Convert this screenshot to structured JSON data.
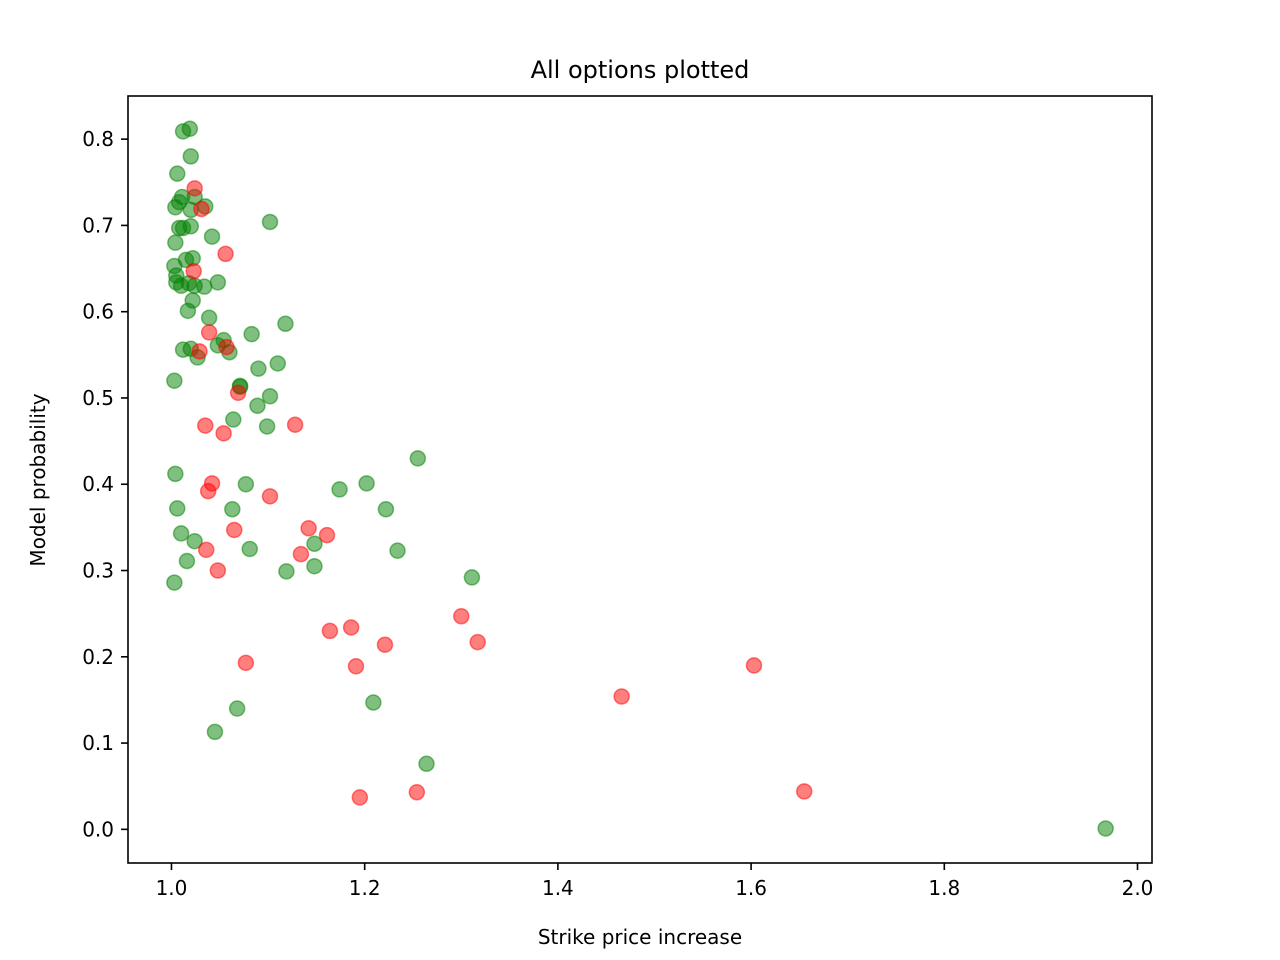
{
  "chart_data": {
    "type": "scatter",
    "title": "All options plotted",
    "xlabel": "Strike price increase",
    "ylabel": "Model probability",
    "xlim": [
      0.955,
      2.015
    ],
    "ylim": [
      -0.039,
      0.85
    ],
    "xticks": [
      1.0,
      1.2,
      1.4,
      1.6,
      1.8,
      2.0
    ],
    "xtick_labels": [
      "1.0",
      "1.2",
      "1.4",
      "1.6",
      "1.8",
      "2.0"
    ],
    "yticks": [
      0.0,
      0.1,
      0.2,
      0.3,
      0.4,
      0.5,
      0.6,
      0.7,
      0.8
    ],
    "ytick_labels": [
      "0.0",
      "0.1",
      "0.2",
      "0.3",
      "0.4",
      "0.5",
      "0.6",
      "0.7",
      "0.8"
    ],
    "grid": false,
    "marker_alpha": 0.5,
    "series": [
      {
        "color": "#008000",
        "points": [
          [
            1.012,
            0.809
          ],
          [
            1.019,
            0.812
          ],
          [
            1.02,
            0.78
          ],
          [
            1.006,
            0.76
          ],
          [
            1.011,
            0.733
          ],
          [
            1.024,
            0.733
          ],
          [
            1.008,
            0.727
          ],
          [
            1.004,
            0.721
          ],
          [
            1.02,
            0.718
          ],
          [
            1.035,
            0.722
          ],
          [
            1.008,
            0.697
          ],
          [
            1.012,
            0.697
          ],
          [
            1.02,
            0.699
          ],
          [
            1.102,
            0.704
          ],
          [
            1.004,
            0.68
          ],
          [
            1.042,
            0.687
          ],
          [
            1.003,
            0.653
          ],
          [
            1.015,
            0.66
          ],
          [
            1.022,
            0.662
          ],
          [
            1.005,
            0.642
          ],
          [
            1.005,
            0.634
          ],
          [
            1.01,
            0.63
          ],
          [
            1.018,
            0.633
          ],
          [
            1.024,
            0.63
          ],
          [
            1.034,
            0.629
          ],
          [
            1.048,
            0.634
          ],
          [
            1.022,
            0.613
          ],
          [
            1.017,
            0.601
          ],
          [
            1.039,
            0.593
          ],
          [
            1.054,
            0.567
          ],
          [
            1.083,
            0.574
          ],
          [
            1.118,
            0.586
          ],
          [
            1.012,
            0.556
          ],
          [
            1.02,
            0.557
          ],
          [
            1.027,
            0.547
          ],
          [
            1.048,
            0.561
          ],
          [
            1.06,
            0.553
          ],
          [
            1.09,
            0.534
          ],
          [
            1.11,
            0.54
          ],
          [
            1.003,
            0.52
          ],
          [
            1.071,
            0.514
          ],
          [
            1.071,
            0.513
          ],
          [
            1.102,
            0.502
          ],
          [
            1.089,
            0.491
          ],
          [
            1.064,
            0.475
          ],
          [
            1.099,
            0.467
          ],
          [
            1.255,
            0.43
          ],
          [
            1.004,
            0.412
          ],
          [
            1.077,
            0.4
          ],
          [
            1.202,
            0.401
          ],
          [
            1.174,
            0.394
          ],
          [
            1.006,
            0.372
          ],
          [
            1.063,
            0.371
          ],
          [
            1.222,
            0.371
          ],
          [
            1.01,
            0.343
          ],
          [
            1.024,
            0.334
          ],
          [
            1.081,
            0.325
          ],
          [
            1.148,
            0.331
          ],
          [
            1.234,
            0.323
          ],
          [
            1.016,
            0.311
          ],
          [
            1.119,
            0.299
          ],
          [
            1.148,
            0.305
          ],
          [
            1.311,
            0.292
          ],
          [
            1.003,
            0.286
          ],
          [
            1.209,
            0.147
          ],
          [
            1.068,
            0.14
          ],
          [
            1.045,
            0.113
          ],
          [
            1.264,
            0.076
          ],
          [
            1.967,
            0.001
          ]
        ]
      },
      {
        "color": "#ff0000",
        "points": [
          [
            1.024,
            0.743
          ],
          [
            1.031,
            0.719
          ],
          [
            1.056,
            0.667
          ],
          [
            1.023,
            0.647
          ],
          [
            1.039,
            0.576
          ],
          [
            1.029,
            0.554
          ],
          [
            1.057,
            0.559
          ],
          [
            1.069,
            0.506
          ],
          [
            1.035,
            0.468
          ],
          [
            1.054,
            0.459
          ],
          [
            1.128,
            0.469
          ],
          [
            1.042,
            0.401
          ],
          [
            1.038,
            0.392
          ],
          [
            1.102,
            0.386
          ],
          [
            1.142,
            0.349
          ],
          [
            1.065,
            0.347
          ],
          [
            1.161,
            0.341
          ],
          [
            1.036,
            0.324
          ],
          [
            1.134,
            0.319
          ],
          [
            1.048,
            0.3
          ],
          [
            1.164,
            0.23
          ],
          [
            1.186,
            0.234
          ],
          [
            1.191,
            0.189
          ],
          [
            1.221,
            0.214
          ],
          [
            1.3,
            0.247
          ],
          [
            1.317,
            0.217
          ],
          [
            1.077,
            0.193
          ],
          [
            1.603,
            0.19
          ],
          [
            1.466,
            0.154
          ],
          [
            1.195,
            0.037
          ],
          [
            1.254,
            0.043
          ],
          [
            1.655,
            0.044
          ]
        ]
      }
    ]
  }
}
